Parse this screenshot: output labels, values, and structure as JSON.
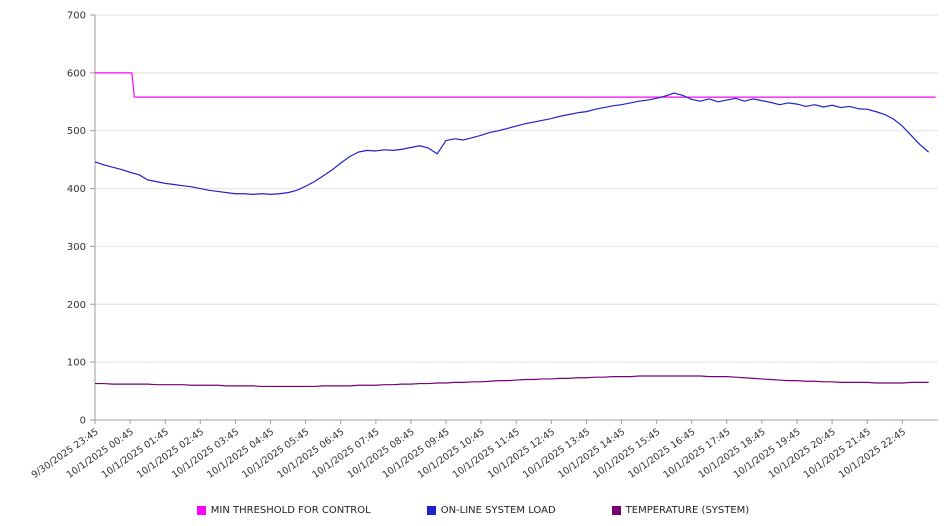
{
  "chart_data": {
    "type": "line",
    "title": "",
    "xlabel": "",
    "ylabel": "",
    "ylim": [
      0,
      700
    ],
    "y_ticks": [
      0,
      100,
      200,
      300,
      400,
      500,
      600,
      700
    ],
    "grid": true,
    "legend_position": "bottom",
    "x_step_hours": 0.25,
    "x_tick_every_hours": 1,
    "x_labels": [
      "9/30/2025 23:45",
      "10/1/2025 00:45",
      "10/1/2025 01:45",
      "10/1/2025 02:45",
      "10/1/2025 03:45",
      "10/1/2025 04:45",
      "10/1/2025 05:45",
      "10/1/2025 06:45",
      "10/1/2025 07:45",
      "10/1/2025 08:45",
      "10/1/2025 09:45",
      "10/1/2025 10:45",
      "10/1/2025 11:45",
      "10/1/2025 12:45",
      "10/1/2025 13:45",
      "10/1/2025 14:45",
      "10/1/2025 15:45",
      "10/1/2025 16:45",
      "10/1/2025 17:45",
      "10/1/2025 18:45",
      "10/1/2025 19:45",
      "10/1/2025 20:45",
      "10/1/2025 21:45",
      "10/1/2025 22:45"
    ],
    "series": [
      {
        "name": "MIN THRESHOLD FOR CONTROL",
        "color": "#ff00ff",
        "points": [
          [
            0,
            600
          ],
          [
            1.05,
            600
          ],
          [
            1.12,
            558
          ],
          [
            23.95,
            558
          ]
        ]
      },
      {
        "name": "ON-LINE SYSTEM LOAD",
        "color": "#2222cc",
        "values": [
          446,
          441,
          437,
          433,
          428,
          424,
          415,
          412,
          409,
          407,
          405,
          403,
          400,
          397,
          395,
          393,
          391,
          391,
          390,
          391,
          390,
          391,
          393,
          397,
          404,
          412,
          422,
          432,
          444,
          455,
          463,
          466,
          465,
          467,
          466,
          468,
          471,
          474,
          470,
          460,
          483,
          486,
          484,
          488,
          492,
          497,
          500,
          504,
          508,
          512,
          515,
          518,
          521,
          525,
          528,
          531,
          533,
          537,
          540,
          543,
          545,
          548,
          551,
          553,
          556,
          560,
          565,
          561,
          554,
          551,
          555,
          550,
          553,
          556,
          551,
          555,
          552,
          549,
          545,
          548,
          546,
          542,
          545,
          541,
          544,
          540,
          542,
          538,
          537,
          533,
          528,
          520,
          508,
          492,
          476,
          463
        ]
      },
      {
        "name": "TEMPERATURE (SYSTEM)",
        "color": "#770077",
        "values": [
          63,
          63,
          62,
          62,
          62,
          62,
          62,
          61,
          61,
          61,
          61,
          60,
          60,
          60,
          60,
          59,
          59,
          59,
          59,
          58,
          58,
          58,
          58,
          58,
          58,
          58,
          59,
          59,
          59,
          59,
          60,
          60,
          60,
          61,
          61,
          62,
          62,
          63,
          63,
          64,
          64,
          65,
          65,
          66,
          66,
          67,
          68,
          68,
          69,
          70,
          70,
          71,
          71,
          72,
          72,
          73,
          73,
          74,
          74,
          75,
          75,
          75,
          76,
          76,
          76,
          76,
          76,
          76,
          76,
          76,
          75,
          75,
          75,
          74,
          73,
          72,
          71,
          70,
          69,
          68,
          68,
          67,
          67,
          66,
          66,
          65,
          65,
          65,
          65,
          64,
          64,
          64,
          64,
          65,
          65,
          65
        ]
      }
    ],
    "colors": {
      "grid": "#e2e2e2",
      "axis": "#9e9e9e",
      "tick_text": "#333333"
    }
  }
}
